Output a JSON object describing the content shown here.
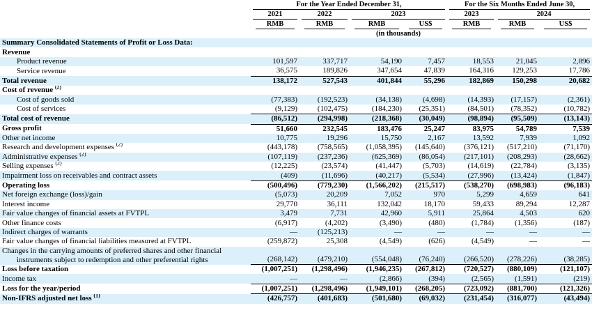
{
  "header": {
    "groups": [
      "For the Year Ended December 31,",
      "For the Six Months Ended June 30,"
    ],
    "years": [
      "2021",
      "2022",
      "2023",
      "2023",
      "2024"
    ],
    "currencies": [
      "RMB",
      "RMB",
      "RMB",
      "US$",
      "RMB",
      "RMB",
      "US$"
    ],
    "unit": "(in thousands)"
  },
  "table": {
    "rows": [
      {
        "label": "Summary Consolidated Statements of Profit or Loss Data:",
        "bold": true
      },
      {
        "label": "Revenue",
        "bold": true
      },
      {
        "label": "Product revenue",
        "indent": true,
        "values": [
          "101,597",
          "337,717",
          "54,190",
          "7,457",
          "18,553",
          "21,045",
          "2,896"
        ]
      },
      {
        "label": "Service revenue",
        "indent": true,
        "values": [
          "36,575",
          "189,826",
          "347,654",
          "47,839",
          "164,316",
          "129,253",
          "17,786"
        ]
      },
      {
        "label": "Total revenue",
        "bold": true,
        "total": true,
        "values": [
          "138,172",
          "527,543",
          "401,844",
          "55,296",
          "182,869",
          "150,298",
          "20,682"
        ]
      },
      {
        "label": "Cost of revenue",
        "note": "(2)",
        "bold": true
      },
      {
        "label": "Cost of goods sold",
        "indent": true,
        "values": [
          "(77,383)",
          "(192,523)",
          "(34,138)",
          "(4,698)",
          "(14,393)",
          "(17,157)",
          "(2,361)"
        ]
      },
      {
        "label": "Cost of services",
        "indent": true,
        "values": [
          "(9,129)",
          "(102,475)",
          "(184,230)",
          "(25,351)",
          "(84,501)",
          "(78,352)",
          "(10,782)"
        ]
      },
      {
        "label": "Total cost of revenue",
        "bold": true,
        "total": true,
        "values": [
          "(86,512)",
          "(294,998)",
          "(218,368)",
          "(30,049)",
          "(98,894)",
          "(95,509)",
          "(13,143)"
        ]
      },
      {
        "label": "Gross profit",
        "bold": true,
        "total": true,
        "values": [
          "51,660",
          "232,545",
          "183,476",
          "25,247",
          "83,975",
          "54,789",
          "7,539"
        ]
      },
      {
        "label": "Other net income",
        "values": [
          "10,775",
          "19,296",
          "15,750",
          "2,167",
          "13,592",
          "7,939",
          "1,092"
        ]
      },
      {
        "label": "Research and development expenses",
        "note": "(2)",
        "values": [
          "(443,178)",
          "(758,565)",
          "(1,058,395)",
          "(145,640)",
          "(376,121)",
          "(517,210)",
          "(71,170)"
        ]
      },
      {
        "label": "Administrative expenses",
        "note": "(2)",
        "values": [
          "(107,119)",
          "(237,236)",
          "(625,369)",
          "(86,054)",
          "(217,101)",
          "(208,293)",
          "(28,662)"
        ]
      },
      {
        "label": "Selling expenses",
        "note": "(2)",
        "values": [
          "(12,225)",
          "(23,574)",
          "(41,447)",
          "(5,703)",
          "(14,619)",
          "(22,784)",
          "(3,135)"
        ]
      },
      {
        "label": "Impairment loss on receivables and contract assets",
        "values": [
          "(409)",
          "(11,696)",
          "(40,217)",
          "(5,534)",
          "(27,996)",
          "(13,424)",
          "(1,847)"
        ]
      },
      {
        "label": "Operating loss",
        "bold": true,
        "total": true,
        "values": [
          "(500,496)",
          "(779,230)",
          "(1,566,202)",
          "(215,517)",
          "(538,270)",
          "(698,983)",
          "(96,183)"
        ]
      },
      {
        "label": "Net foreign exchange (loss)/gain",
        "values": [
          "(5,073)",
          "20,209",
          "7,052",
          "970",
          "5,299",
          "4,659",
          "641"
        ]
      },
      {
        "label": "Interest income",
        "values": [
          "29,770",
          "36,111",
          "132,042",
          "18,170",
          "59,433",
          "89,294",
          "12,287"
        ]
      },
      {
        "label": "Fair value changes of financial assets at FVTPL",
        "values": [
          "3,479",
          "7,731",
          "42,960",
          "5,911",
          "25,864",
          "4,503",
          "620"
        ]
      },
      {
        "label": "Other finance costs",
        "values": [
          "(6,917)",
          "(4,202)",
          "(3,490)",
          "(480)",
          "(1,784)",
          "(1,356)",
          "(187)"
        ]
      },
      {
        "label": "Indirect charges of warrants",
        "values": [
          "—",
          "(125,213)",
          "—",
          "—",
          "—",
          "—",
          "—"
        ]
      },
      {
        "label": "Fair value changes of financial liabilities measured at FVTPL",
        "values": [
          "(259,872)",
          "25,308",
          "(4,549)",
          "(626)",
          "(4,549)",
          "—",
          "—"
        ]
      },
      {
        "label": "Changes in the carrying amounts of preferred shares and other financial",
        "label2": "instruments subject to redemption and other preferential rights",
        "values": [
          "(268,142)",
          "(479,210)",
          "(554,048)",
          "(76,240)",
          "(266,520)",
          "(278,226)",
          "(38,285)"
        ]
      },
      {
        "label": "Loss before taxation",
        "bold": true,
        "total": true,
        "values": [
          "(1,007,251)",
          "(1,298,496)",
          "(1,946,235)",
          "(267,812)",
          "(720,527)",
          "(880,109)",
          "(121,107)"
        ]
      },
      {
        "label": "Income tax",
        "values": [
          "—",
          "—",
          "(2,866)",
          "(394)",
          "(2,565)",
          "(1,591)",
          "(219)"
        ]
      },
      {
        "label": "Loss for the year/period",
        "bold": true,
        "total": true,
        "values": [
          "(1,007,251)",
          "(1,298,496)",
          "(1,949,101)",
          "(268,205)",
          "(723,092)",
          "(881,700)",
          "(121,326)"
        ]
      },
      {
        "label": "Non-IFRS adjusted net loss",
        "note": "(1)",
        "bold": true,
        "total": true,
        "values": [
          "(426,757)",
          "(401,683)",
          "(501,680)",
          "(69,032)",
          "(231,454)",
          "(316,077)",
          "(43,494)"
        ]
      }
    ]
  }
}
